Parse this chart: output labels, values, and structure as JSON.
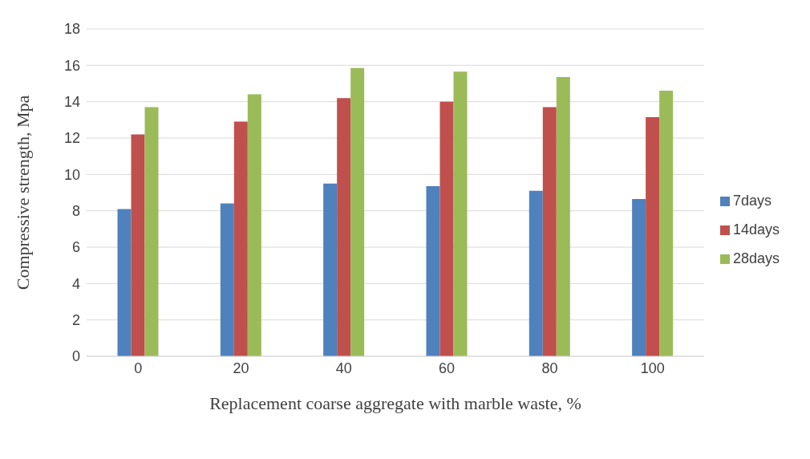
{
  "chart_data": {
    "type": "bar",
    "xlabel": "Replacement coarse aggregate with marble waste, %",
    "ylabel": "Compressive strength, Mpa",
    "categories": [
      "0",
      "20",
      "40",
      "60",
      "80",
      "100"
    ],
    "series": [
      {
        "name": "7days",
        "color": "#4f81bd",
        "values": [
          8.1,
          8.4,
          9.5,
          9.35,
          9.1,
          8.65
        ]
      },
      {
        "name": "14days",
        "color": "#c0504d",
        "values": [
          12.2,
          12.9,
          14.2,
          14.0,
          13.7,
          13.15
        ]
      },
      {
        "name": "28days",
        "color": "#9bbb59",
        "values": [
          13.7,
          14.4,
          15.85,
          15.65,
          15.35,
          14.6
        ]
      }
    ],
    "ylim": [
      0,
      18
    ],
    "yticks": [
      0,
      2,
      4,
      6,
      8,
      10,
      12,
      14,
      16,
      18
    ],
    "grid": "y",
    "legend": "right"
  }
}
